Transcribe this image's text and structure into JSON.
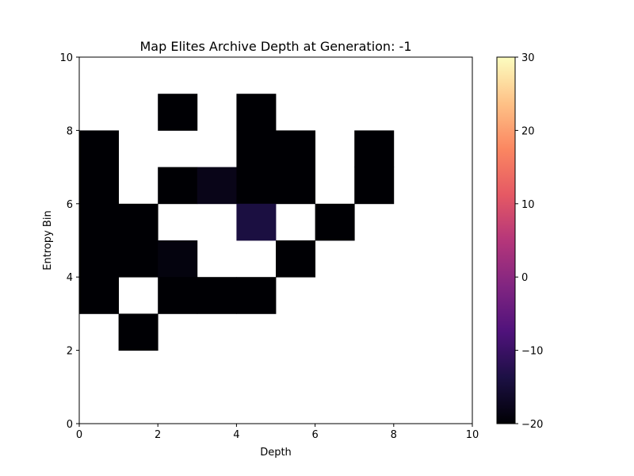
{
  "chart_data": {
    "type": "heatmap",
    "title": "Map Elites Archive Depth at Generation: -1",
    "xlabel": "Depth",
    "ylabel": "Entropy Bin",
    "xlim": [
      0,
      10
    ],
    "ylim": [
      0,
      10
    ],
    "x_ticks": [
      0,
      2,
      4,
      6,
      8,
      10
    ],
    "y_ticks": [
      0,
      2,
      4,
      6,
      8,
      10
    ],
    "colormap": "magma",
    "colorbar": {
      "vmin": -20,
      "vmax": 30,
      "ticks": [
        -20,
        -10,
        0,
        10,
        20,
        30
      ]
    },
    "empty_color": "#ffffff",
    "cells": [
      {
        "x": 2,
        "y": 8,
        "value": -20
      },
      {
        "x": 4,
        "y": 8,
        "value": -20
      },
      {
        "x": 0,
        "y": 7,
        "value": -20
      },
      {
        "x": 4,
        "y": 7,
        "value": -20
      },
      {
        "x": 5,
        "y": 7,
        "value": -20
      },
      {
        "x": 7,
        "y": 7,
        "value": -20
      },
      {
        "x": 0,
        "y": 6,
        "value": -20
      },
      {
        "x": 2,
        "y": 6,
        "value": -20
      },
      {
        "x": 3,
        "y": 6,
        "value": -18
      },
      {
        "x": 4,
        "y": 6,
        "value": -20
      },
      {
        "x": 5,
        "y": 6,
        "value": -20
      },
      {
        "x": 7,
        "y": 6,
        "value": -20
      },
      {
        "x": 0,
        "y": 5,
        "value": -20
      },
      {
        "x": 1,
        "y": 5,
        "value": -20
      },
      {
        "x": 4,
        "y": 5,
        "value": -14
      },
      {
        "x": 6,
        "y": 5,
        "value": -20
      },
      {
        "x": 0,
        "y": 4,
        "value": -20
      },
      {
        "x": 1,
        "y": 4,
        "value": -20
      },
      {
        "x": 2,
        "y": 4,
        "value": -19
      },
      {
        "x": 5,
        "y": 4,
        "value": -20
      },
      {
        "x": 0,
        "y": 3,
        "value": -20
      },
      {
        "x": 2,
        "y": 3,
        "value": -20
      },
      {
        "x": 3,
        "y": 3,
        "value": -20
      },
      {
        "x": 4,
        "y": 3,
        "value": -20
      },
      {
        "x": 1,
        "y": 2,
        "value": -20
      }
    ]
  }
}
